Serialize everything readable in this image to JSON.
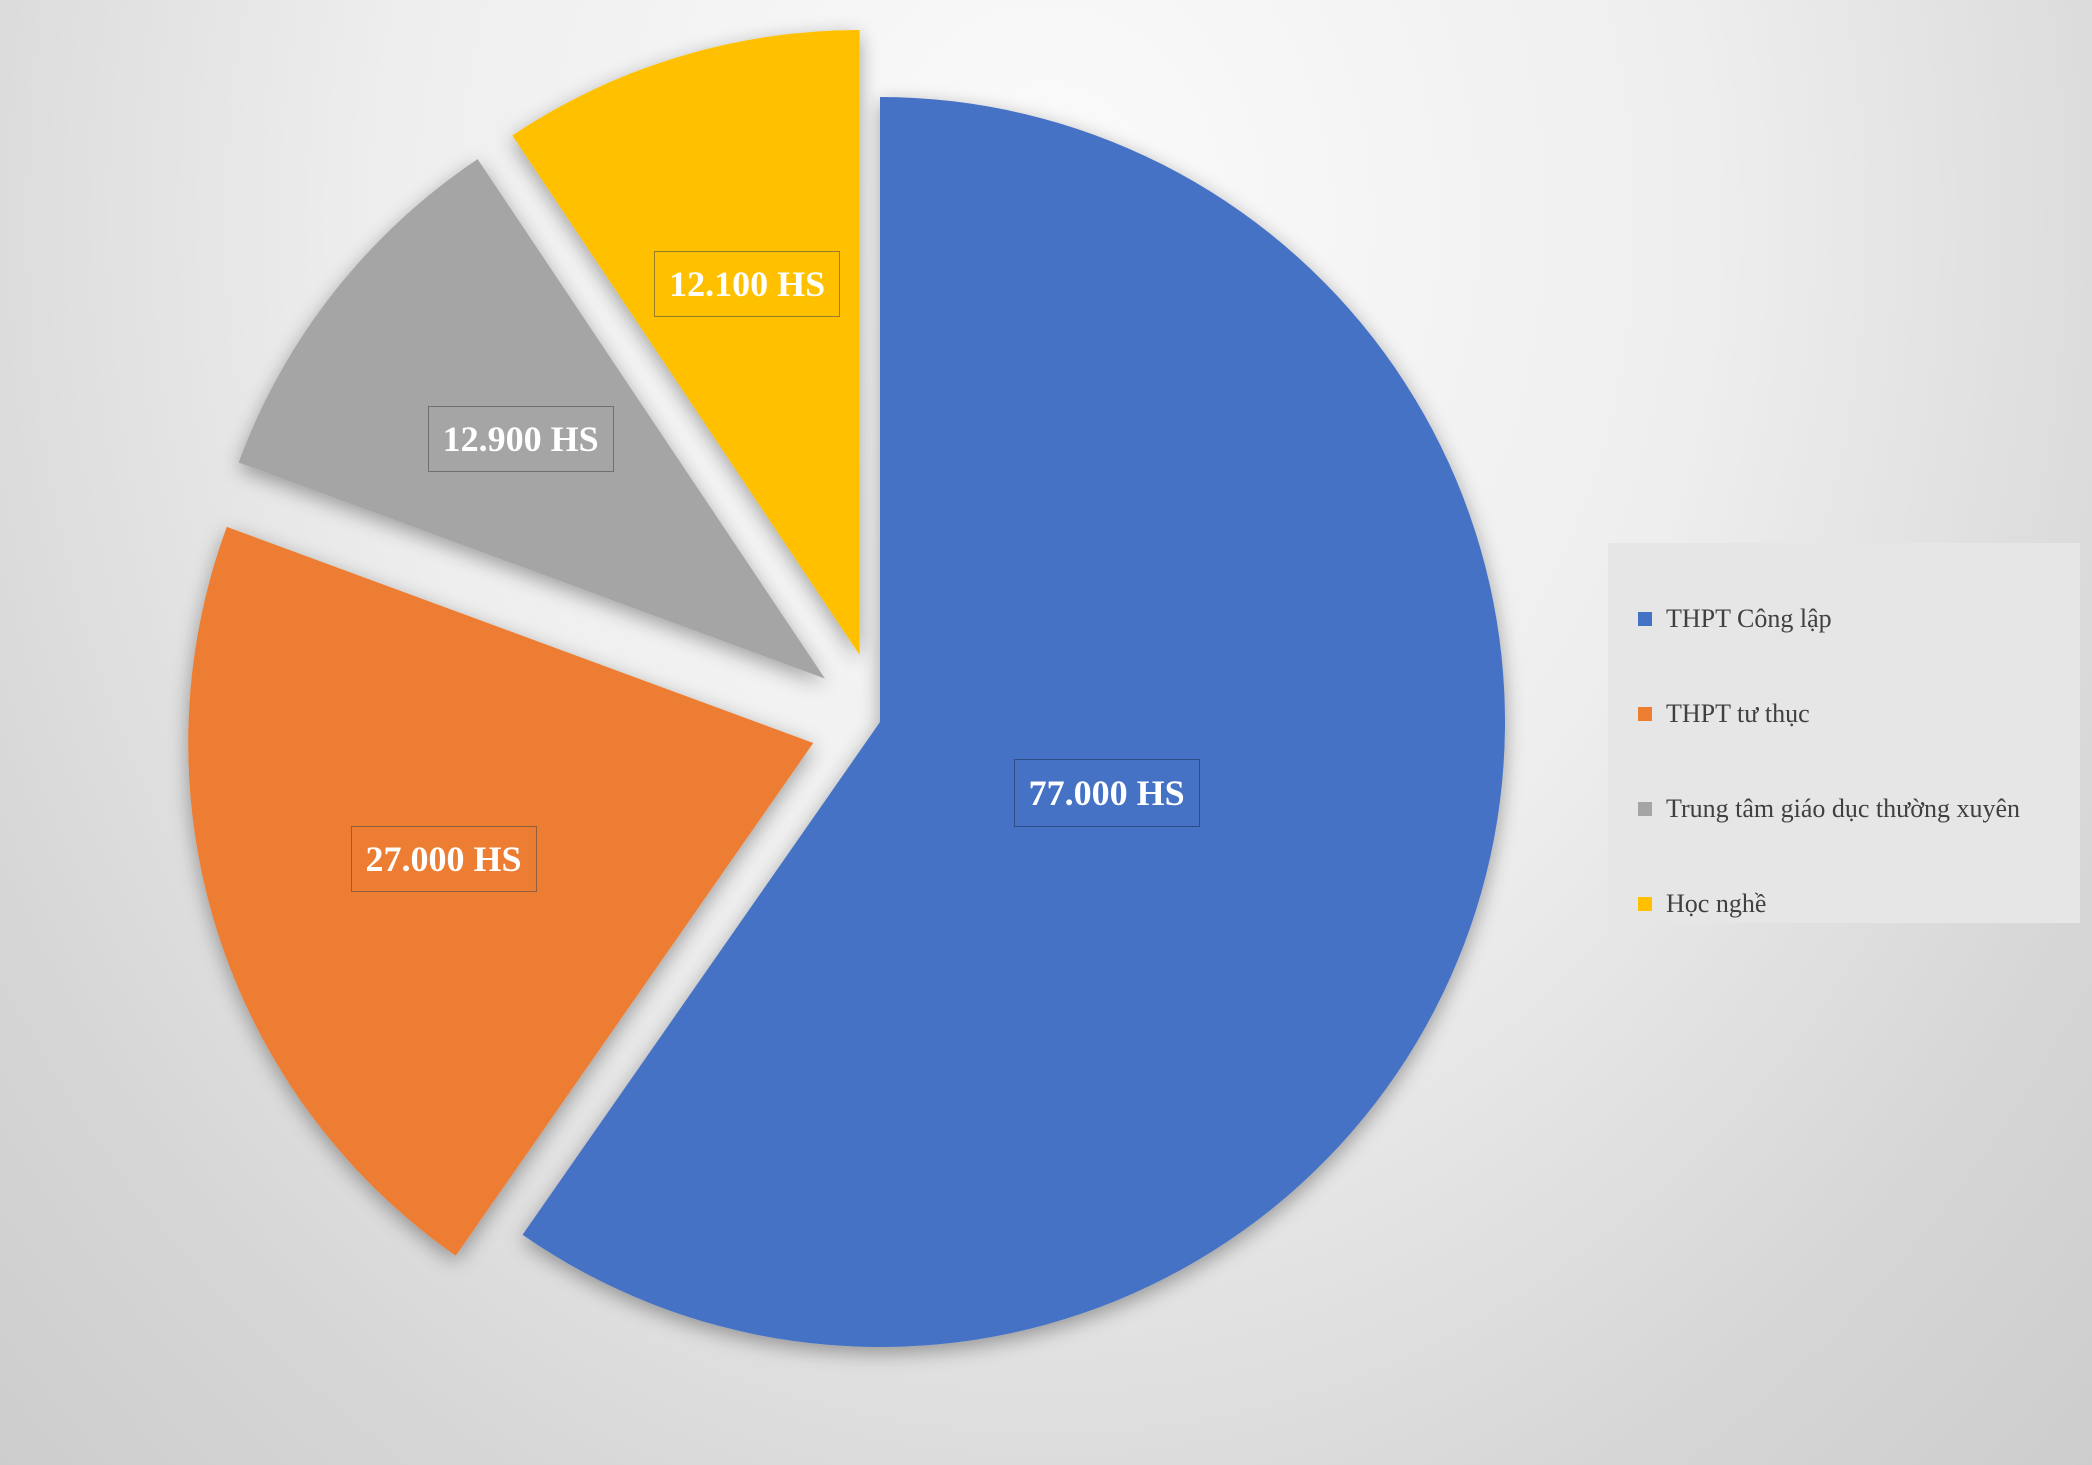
{
  "chart_data": {
    "type": "pie",
    "title": "",
    "slices": [
      {
        "name": "THPT Công lập",
        "value": 77000,
        "label": "77.000 HS",
        "color": "#4472C4",
        "exploded": false
      },
      {
        "name": "THPT tư thục",
        "value": 27000,
        "label": "27.000 HS",
        "color": "#ED7D31",
        "exploded": true
      },
      {
        "name": "Trung tâm giáo dục thường xuyên",
        "value": 12900,
        "label": "12.900 HS",
        "color": "#A5A5A5",
        "exploded": true
      },
      {
        "name": "Học nghề",
        "value": 12100,
        "label": "12.100 HS",
        "color": "#FFC000",
        "exploded": true
      }
    ],
    "legend_position": "right"
  },
  "legend": {
    "items": [
      {
        "label": "THPT Công lập",
        "color": "#4472C4"
      },
      {
        "label": "THPT tư thục",
        "color": "#ED7D31"
      },
      {
        "label": "Trung tâm giáo dục thường xuyên",
        "color": "#A5A5A5"
      },
      {
        "label": "Học nghề",
        "color": "#FFC000"
      }
    ]
  }
}
